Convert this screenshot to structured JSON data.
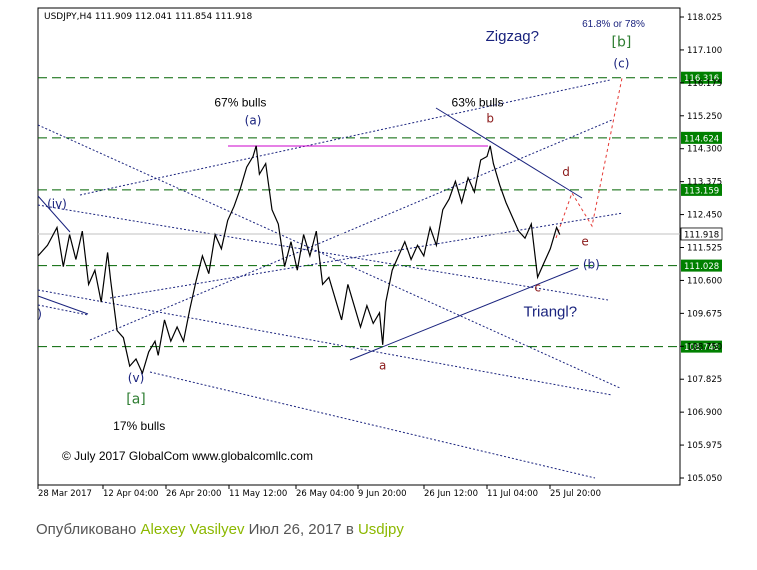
{
  "chart_data": {
    "type": "line",
    "header": "USDJPY,H4  111.909 112.041 111.854 111.918",
    "copyright": "© July 2017 GlobalCom www.globalcomllc.com",
    "ylim": [
      105.05,
      118.1
    ],
    "y_ticks": [
      "118.025",
      "117.100",
      "116.175",
      "115.250",
      "114.300",
      "113.375",
      "112.450",
      "111.525",
      "110.600",
      "109.675",
      "108.750",
      "107.825",
      "106.900",
      "105.975",
      "105.050"
    ],
    "x_ticks": [
      "28 Mar 2017",
      "12 Apr 04:00",
      "26 Apr 20:00",
      "11 May 12:00",
      "26 May 04:00",
      "9 Jun 20:00",
      "26 Jun 12:00",
      "11 Jul 04:00",
      "25 Jul 20:00"
    ],
    "price_series": [
      [
        0,
        111.3
      ],
      [
        3,
        111.6
      ],
      [
        6,
        112.1
      ],
      [
        8,
        111.0
      ],
      [
        10,
        111.9
      ],
      [
        12,
        111.2
      ],
      [
        14,
        112.0
      ],
      [
        16,
        110.5
      ],
      [
        18,
        110.9
      ],
      [
        20,
        110.0
      ],
      [
        22,
        111.4
      ],
      [
        23,
        110.6
      ],
      [
        25,
        109.2
      ],
      [
        27,
        109.0
      ],
      [
        29,
        108.2
      ],
      [
        31,
        108.4
      ],
      [
        33,
        108.0
      ],
      [
        35,
        108.6
      ],
      [
        37,
        108.9
      ],
      [
        38,
        108.5
      ],
      [
        40,
        109.5
      ],
      [
        42,
        108.9
      ],
      [
        44,
        109.3
      ],
      [
        46,
        108.9
      ],
      [
        48,
        109.8
      ],
      [
        50,
        110.6
      ],
      [
        52,
        111.3
      ],
      [
        54,
        110.8
      ],
      [
        56,
        111.9
      ],
      [
        58,
        111.5
      ],
      [
        60,
        112.3
      ],
      [
        62,
        112.7
      ],
      [
        64,
        113.2
      ],
      [
        66,
        113.8
      ],
      [
        68,
        114.1
      ],
      [
        69,
        114.4
      ],
      [
        70,
        113.6
      ],
      [
        72,
        113.9
      ],
      [
        74,
        112.6
      ],
      [
        76,
        112.2
      ],
      [
        78,
        111.0
      ],
      [
        80,
        111.7
      ],
      [
        82,
        110.9
      ],
      [
        84,
        111.9
      ],
      [
        86,
        111.3
      ],
      [
        88,
        112.0
      ],
      [
        90,
        110.5
      ],
      [
        92,
        110.7
      ],
      [
        94,
        110.1
      ],
      [
        96,
        109.5
      ],
      [
        98,
        110.5
      ],
      [
        100,
        109.9
      ],
      [
        102,
        109.3
      ],
      [
        104,
        109.9
      ],
      [
        106,
        109.4
      ],
      [
        108,
        109.7
      ],
      [
        109,
        108.8
      ],
      [
        110,
        110.0
      ],
      [
        112,
        110.9
      ],
      [
        114,
        111.3
      ],
      [
        116,
        111.7
      ],
      [
        118,
        111.2
      ],
      [
        120,
        111.6
      ],
      [
        122,
        111.3
      ],
      [
        124,
        112.1
      ],
      [
        126,
        111.6
      ],
      [
        128,
        112.6
      ],
      [
        130,
        112.9
      ],
      [
        132,
        113.4
      ],
      [
        134,
        112.8
      ],
      [
        136,
        113.5
      ],
      [
        138,
        113.1
      ],
      [
        140,
        114.0
      ],
      [
        142,
        114.1
      ],
      [
        143,
        114.4
      ],
      [
        144,
        113.9
      ],
      [
        146,
        113.3
      ],
      [
        148,
        112.8
      ],
      [
        150,
        112.4
      ],
      [
        152,
        112.0
      ],
      [
        154,
        111.8
      ],
      [
        156,
        112.2
      ],
      [
        158,
        110.7
      ],
      [
        160,
        111.1
      ],
      [
        162,
        111.5
      ],
      [
        164,
        112.1
      ],
      [
        165,
        111.9
      ]
    ],
    "levels": [
      {
        "value": 116.316,
        "label": "116.316"
      },
      {
        "value": 114.624,
        "label": "114.624"
      },
      {
        "value": 113.159,
        "label": "113.159"
      },
      {
        "value": 111.028,
        "label": "111.028"
      },
      {
        "value": 108.748,
        "label": "108.748"
      }
    ],
    "current_price": {
      "value": 111.918,
      "label": "111.918"
    },
    "wave_labels": [
      {
        "text": "(a)",
        "t": 68,
        "v": 115.0,
        "color": "#1a237e"
      },
      {
        "text": "b",
        "t": 143,
        "v": 115.05,
        "color": "#8b1a1a"
      },
      {
        "text": "(c)",
        "t": 184.5,
        "v": 116.6,
        "color": "#1a237e"
      },
      {
        "text": "[b]",
        "t": 184.5,
        "v": 117.2,
        "color": "#2e7d32"
      },
      {
        "text": "d",
        "t": 167,
        "v": 113.55,
        "color": "#8b1a1a"
      },
      {
        "text": "e",
        "t": 173,
        "v": 111.6,
        "color": "#8b1a1a"
      },
      {
        "text": "(b)",
        "t": 175,
        "v": 110.95,
        "color": "#1a237e"
      },
      {
        "text": "c",
        "t": 158,
        "v": 110.3,
        "color": "#8b1a1a"
      },
      {
        "text": "a",
        "t": 109,
        "v": 108.1,
        "color": "#8b1a1a"
      },
      {
        "text": "(v)",
        "t": 31,
        "v": 107.75,
        "color": "#1a237e"
      },
      {
        "text": "[a]",
        "t": 31,
        "v": 107.15,
        "color": "#2e7d32"
      },
      {
        "text": "(iv)",
        "t": 6,
        "v": 112.65,
        "color": "#1a237e"
      },
      {
        "text": ")",
        "t": 0.5,
        "v": 109.55,
        "color": "#1a237e"
      }
    ],
    "annotations": [
      {
        "text": "67% bulls",
        "t": 64,
        "v": 115.5
      },
      {
        "text": "63% bulls",
        "t": 139,
        "v": 115.5
      },
      {
        "text": "17% bulls",
        "t": 32,
        "v": 106.4
      },
      {
        "text": "Zigzag?",
        "t": 150,
        "v": 117.35
      },
      {
        "text": "61.8% or 78%",
        "t": 182,
        "v": 117.75
      },
      {
        "text": "Triangl?",
        "t": 162,
        "v": 109.6
      }
    ]
  },
  "footer": {
    "prefix": "Опубликовано",
    "author": "Alexey Vasilyev",
    "date": "Июл 26, 2017 в",
    "symbol": "Usdjpy"
  }
}
